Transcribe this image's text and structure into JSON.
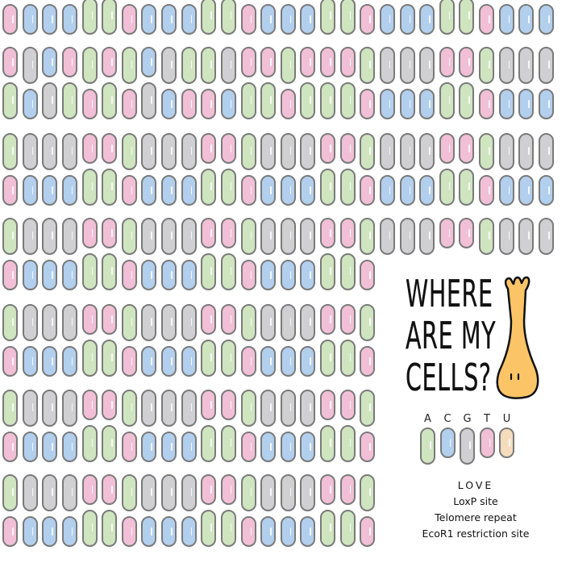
{
  "colors": {
    "A": "#cfe5c0",
    "C": "#b3cfee",
    "G": "#d0d0d2",
    "T": "#f2c0d6",
    "U": "#f5dcbd",
    "outline": "#7a7a7a",
    "cell": "#fbc567"
  },
  "strands": {
    "row0_bottom": "TCCCAATCCCAATCCCAATCCCAATCCC",
    "pairs_top": [
      "TGCTATACGAAGTTATTTAGGGTTAGGG",
      "AGGGTTAGGGTTAGGGTTAGGGTTAGGG",
      "AGGGTTAGGGTTAGGGTTAGGGTTAGGG",
      "AGGGTTAGGGTTAGGGTTA",
      "AGGGTTAGGGTTAGGGTTA",
      "AGGGTTAGGGTTAGGGTTA"
    ],
    "pair3_bottom_length": 19
  },
  "logo": {
    "line1": "WHERE",
    "line2": "ARE MY",
    "line3": "CELLS?"
  },
  "legend": {
    "bases": [
      "A",
      "C",
      "G",
      "T",
      "U"
    ]
  },
  "motifs": [
    "LOVE",
    "LoxP site",
    "Telomere repeat",
    "EcoR1 restriction site"
  ]
}
